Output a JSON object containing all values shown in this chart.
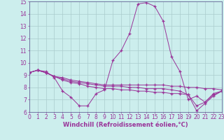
{
  "xlabel": "Windchill (Refroidissement éolien,°C)",
  "xlim": [
    0,
    23
  ],
  "ylim": [
    6,
    15
  ],
  "yticks": [
    6,
    7,
    8,
    9,
    10,
    11,
    12,
    13,
    14,
    15
  ],
  "xticks": [
    0,
    1,
    2,
    3,
    4,
    5,
    6,
    7,
    8,
    9,
    10,
    11,
    12,
    13,
    14,
    15,
    16,
    17,
    18,
    19,
    20,
    21,
    22,
    23
  ],
  "background_color": "#cceeed",
  "grid_color": "#aacccc",
  "line_color": "#993399",
  "lines": [
    {
      "x": [
        0,
        1,
        2,
        3,
        4,
        5,
        6,
        7,
        8,
        9,
        10,
        11,
        12,
        13,
        14,
        15,
        16,
        17,
        18,
        19,
        20,
        21,
        22,
        23
      ],
      "y": [
        9.2,
        9.4,
        9.3,
        8.8,
        7.7,
        7.2,
        6.5,
        6.5,
        7.5,
        7.8,
        10.2,
        11.0,
        12.4,
        14.8,
        14.9,
        14.6,
        13.4,
        10.5,
        9.3,
        7.0,
        7.3,
        6.8,
        7.5,
        7.7
      ]
    },
    {
      "x": [
        0,
        1,
        2,
        3,
        4,
        5,
        6,
        7,
        8,
        9,
        10,
        11,
        12,
        13,
        14,
        15,
        16,
        17,
        18,
        19,
        20,
        21,
        22,
        23
      ],
      "y": [
        9.2,
        9.4,
        9.2,
        8.9,
        8.8,
        8.6,
        8.5,
        8.4,
        8.3,
        8.2,
        8.2,
        8.2,
        8.2,
        8.2,
        8.2,
        8.2,
        8.2,
        8.1,
        8.1,
        8.0,
        8.0,
        7.9,
        7.9,
        7.8
      ]
    },
    {
      "x": [
        0,
        1,
        2,
        3,
        4,
        5,
        6,
        7,
        8,
        9,
        10,
        11,
        12,
        13,
        14,
        15,
        16,
        17,
        18,
        19,
        20,
        21,
        22,
        23
      ],
      "y": [
        9.2,
        9.4,
        9.2,
        8.9,
        8.7,
        8.5,
        8.4,
        8.3,
        8.2,
        8.1,
        8.1,
        8.1,
        8.0,
        8.0,
        7.9,
        7.9,
        7.9,
        7.8,
        7.7,
        7.4,
        6.5,
        6.8,
        7.4,
        7.7
      ]
    },
    {
      "x": [
        0,
        1,
        2,
        3,
        4,
        5,
        6,
        7,
        8,
        9,
        10,
        11,
        12,
        13,
        14,
        15,
        16,
        17,
        18,
        19,
        20,
        21,
        22,
        23
      ],
      "y": [
        9.2,
        9.4,
        9.2,
        8.9,
        8.6,
        8.4,
        8.3,
        8.1,
        8.0,
        7.9,
        7.9,
        7.8,
        7.8,
        7.7,
        7.7,
        7.6,
        7.6,
        7.5,
        7.5,
        7.4,
        6.1,
        6.7,
        7.3,
        7.7
      ]
    }
  ]
}
